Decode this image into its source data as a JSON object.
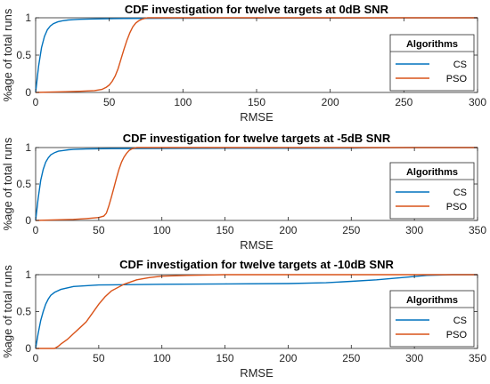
{
  "chart_data": [
    {
      "type": "line",
      "title": "CDF investigation for twelve targets at 0dB SNR",
      "xlabel": "RMSE",
      "ylabel": "%age of total runs",
      "xlim": [
        0,
        300
      ],
      "ylim": [
        0,
        1
      ],
      "xticks": [
        "0",
        "50",
        "100",
        "150",
        "200",
        "250",
        "300"
      ],
      "yticks": [
        "0",
        "0.5",
        "1"
      ],
      "legend": {
        "title": "Algorithms",
        "position": "right"
      },
      "series": [
        {
          "name": "CS",
          "color": "#0072BD",
          "x": [
            0,
            2,
            4,
            6,
            8,
            10,
            12,
            15,
            18,
            22,
            26,
            30,
            40,
            60,
            100,
            150,
            200,
            250,
            300
          ],
          "y": [
            0,
            0.35,
            0.6,
            0.75,
            0.84,
            0.89,
            0.92,
            0.945,
            0.96,
            0.97,
            0.975,
            0.98,
            0.985,
            0.99,
            0.993,
            0.995,
            0.997,
            0.999,
            1.0
          ]
        },
        {
          "name": "PSO",
          "color": "#D95319",
          "x": [
            0,
            10,
            20,
            30,
            40,
            45,
            48,
            50,
            52,
            54,
            56,
            58,
            60,
            62,
            64,
            66,
            68,
            70,
            72,
            74,
            76,
            80,
            300
          ],
          "y": [
            0,
            0.005,
            0.01,
            0.015,
            0.025,
            0.04,
            0.07,
            0.1,
            0.15,
            0.22,
            0.32,
            0.45,
            0.58,
            0.7,
            0.8,
            0.88,
            0.93,
            0.96,
            0.98,
            0.99,
            1.0,
            1.0,
            1.0
          ]
        }
      ]
    },
    {
      "type": "line",
      "title": "CDF investigation for twelve targets at -5dB SNR",
      "xlabel": "RMSE",
      "ylabel": "%age of total runs",
      "xlim": [
        0,
        350
      ],
      "ylim": [
        0,
        1
      ],
      "xticks": [
        "0",
        "50",
        "100",
        "150",
        "200",
        "250",
        "300",
        "350"
      ],
      "yticks": [
        "0",
        "0.5",
        "1"
      ],
      "legend": {
        "title": "Algorithms",
        "position": "right"
      },
      "series": [
        {
          "name": "CS",
          "color": "#0072BD",
          "x": [
            0,
            2,
            4,
            6,
            8,
            10,
            12,
            15,
            18,
            22,
            26,
            30,
            40,
            60,
            100,
            150,
            200,
            250,
            260,
            300,
            350
          ],
          "y": [
            0,
            0.3,
            0.55,
            0.7,
            0.8,
            0.86,
            0.9,
            0.93,
            0.95,
            0.96,
            0.97,
            0.975,
            0.98,
            0.985,
            0.988,
            0.99,
            0.99,
            0.992,
            0.995,
            1.0,
            1.0
          ]
        },
        {
          "name": "PSO",
          "color": "#D95319",
          "x": [
            0,
            10,
            20,
            30,
            40,
            50,
            54,
            56,
            58,
            60,
            62,
            64,
            66,
            68,
            70,
            72,
            74,
            76,
            78,
            80,
            350
          ],
          "y": [
            0,
            0.005,
            0.01,
            0.015,
            0.025,
            0.04,
            0.06,
            0.1,
            0.2,
            0.32,
            0.45,
            0.58,
            0.7,
            0.8,
            0.87,
            0.92,
            0.96,
            0.98,
            0.99,
            1.0,
            1.0
          ]
        }
      ]
    },
    {
      "type": "line",
      "title": "CDF investigation for twelve targets at -10dB SNR",
      "xlabel": "RMSE",
      "ylabel": "%age of total runs",
      "xlim": [
        0,
        350
      ],
      "ylim": [
        0,
        1
      ],
      "xticks": [
        "0",
        "50",
        "100",
        "150",
        "200",
        "250",
        "300",
        "350"
      ],
      "yticks": [
        "0",
        "0.5",
        "1"
      ],
      "legend": {
        "title": "Algorithms",
        "position": "right"
      },
      "series": [
        {
          "name": "CS",
          "color": "#0072BD",
          "x": [
            0,
            2,
            4,
            6,
            8,
            10,
            12,
            15,
            20,
            25,
            30,
            40,
            50,
            100,
            150,
            200,
            230,
            250,
            270,
            290,
            310,
            330,
            350
          ],
          "y": [
            0,
            0.2,
            0.38,
            0.5,
            0.6,
            0.67,
            0.72,
            0.76,
            0.8,
            0.82,
            0.84,
            0.85,
            0.86,
            0.87,
            0.875,
            0.88,
            0.89,
            0.91,
            0.93,
            0.96,
            0.99,
            1.0,
            1.0
          ]
        },
        {
          "name": "PSO",
          "color": "#D95319",
          "x": [
            0,
            15,
            18,
            20,
            25,
            30,
            35,
            40,
            45,
            50,
            55,
            60,
            70,
            80,
            90,
            100,
            120,
            150,
            350
          ],
          "y": [
            0,
            0,
            0.03,
            0.06,
            0.12,
            0.2,
            0.28,
            0.36,
            0.48,
            0.6,
            0.7,
            0.78,
            0.87,
            0.93,
            0.96,
            0.98,
            0.99,
            1.0,
            1.0
          ]
        }
      ]
    }
  ]
}
